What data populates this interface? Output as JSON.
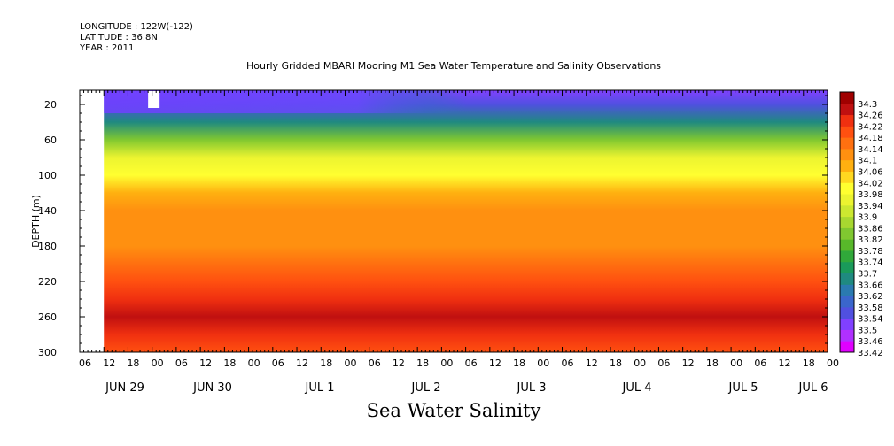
{
  "header": {
    "longitude": "LONGITUDE : 122W(-122)",
    "latitude": "LATITUDE : 36.8N",
    "year": "YEAR : 2011"
  },
  "title": "Hourly Gridded MBARI Mooring M1 Sea Water Temperature and Salinity Observations",
  "bottom_label": "Sea Water Salinity",
  "chart_data": {
    "type": "heatmap",
    "title": "Hourly Gridded MBARI Mooring M1 Sea Water Temperature and Salinity Observations",
    "variable": "Sea Water Salinity",
    "ylabel": "DEPTH (m)",
    "y_reversed": true,
    "ylim": [
      300,
      4
    ],
    "y_ticks": [
      20,
      60,
      100,
      140,
      180,
      220,
      260,
      300
    ],
    "x_hour_ticks": [
      "06",
      "12",
      "18",
      "00",
      "06",
      "12",
      "18",
      "00",
      "06",
      "12",
      "18",
      "00",
      "06",
      "12",
      "18",
      "00",
      "06",
      "12",
      "18",
      "00",
      "06",
      "12",
      "18",
      "00",
      "06",
      "12",
      "18",
      "00",
      "06",
      "12",
      "18",
      "00"
    ],
    "x_date_labels": [
      "JUN 29",
      "JUN 30",
      "JUL  1",
      "JUL  2",
      "JUL  3",
      "JUL  4",
      "JUL  5",
      "JUL  6"
    ],
    "data_start": "JUN 29 12:00",
    "colorbar": {
      "levels": [
        "33.42",
        "33.46",
        "33.5",
        "33.54",
        "33.58",
        "33.62",
        "33.66",
        "33.7",
        "33.74",
        "33.78",
        "33.82",
        "33.86",
        "33.9",
        "33.94",
        "33.98",
        "34.02",
        "34.06",
        "34.1",
        "34.14",
        "34.18",
        "34.22",
        "34.26",
        "34.3"
      ],
      "colors": [
        "#e000ff",
        "#b030ff",
        "#8040ff",
        "#5050e0",
        "#3a66cc",
        "#2a7ab0",
        "#1f8a80",
        "#1a9a5a",
        "#30a83a",
        "#58b82a",
        "#80c830",
        "#a8d830",
        "#cce830",
        "#ecf430",
        "#ffff30",
        "#ffd820",
        "#ffb010",
        "#ff9010",
        "#ff7010",
        "#ff5010",
        "#f03010",
        "#c01010",
        "#a00000"
      ]
    },
    "depth_profile": [
      {
        "depth": 4,
        "salinity": 33.52
      },
      {
        "depth": 20,
        "salinity": 33.54
      },
      {
        "depth": 40,
        "salinity": 33.68
      },
      {
        "depth": 60,
        "salinity": 33.82
      },
      {
        "depth": 80,
        "salinity": 33.94
      },
      {
        "depth": 100,
        "salinity": 34.0
      },
      {
        "depth": 120,
        "salinity": 34.06
      },
      {
        "depth": 140,
        "salinity": 34.1
      },
      {
        "depth": 160,
        "salinity": 34.12
      },
      {
        "depth": 180,
        "salinity": 34.12
      },
      {
        "depth": 200,
        "salinity": 34.14
      },
      {
        "depth": 220,
        "salinity": 34.18
      },
      {
        "depth": 240,
        "salinity": 34.22
      },
      {
        "depth": 260,
        "salinity": 34.26
      },
      {
        "depth": 280,
        "salinity": 34.22
      },
      {
        "depth": 300,
        "salinity": 34.18
      }
    ]
  }
}
